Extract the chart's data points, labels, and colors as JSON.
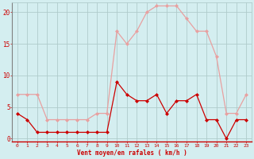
{
  "hours": [
    0,
    1,
    2,
    3,
    4,
    5,
    6,
    7,
    8,
    9,
    10,
    11,
    12,
    13,
    14,
    15,
    16,
    17,
    18,
    19,
    20,
    21,
    22,
    23
  ],
  "vent_moyen": [
    4,
    3,
    1,
    1,
    1,
    1,
    1,
    1,
    1,
    1,
    9,
    7,
    6,
    6,
    7,
    4,
    6,
    6,
    7,
    3,
    3,
    0,
    3,
    3
  ],
  "rafales": [
    7,
    7,
    7,
    3,
    3,
    3,
    3,
    3,
    4,
    4,
    17,
    15,
    17,
    20,
    21,
    21,
    21,
    19,
    17,
    17,
    13,
    4,
    4,
    7
  ],
  "color_moyen": "#cc0000",
  "color_rafales": "#e8a0a0",
  "bg_color": "#d4eef0",
  "grid_color": "#b0cccc",
  "xlabel": "Vent moyen/en rafales ( km/h )",
  "xlabel_color": "#cc0000",
  "tick_color": "#cc0000",
  "ylim": [
    -0.5,
    21.5
  ],
  "yticks": [
    0,
    5,
    10,
    15,
    20
  ],
  "xticks": [
    0,
    1,
    2,
    3,
    4,
    5,
    6,
    7,
    8,
    9,
    10,
    11,
    12,
    13,
    14,
    15,
    16,
    17,
    18,
    19,
    20,
    21,
    22,
    23
  ],
  "marker_size": 2.0,
  "line_width": 0.9
}
